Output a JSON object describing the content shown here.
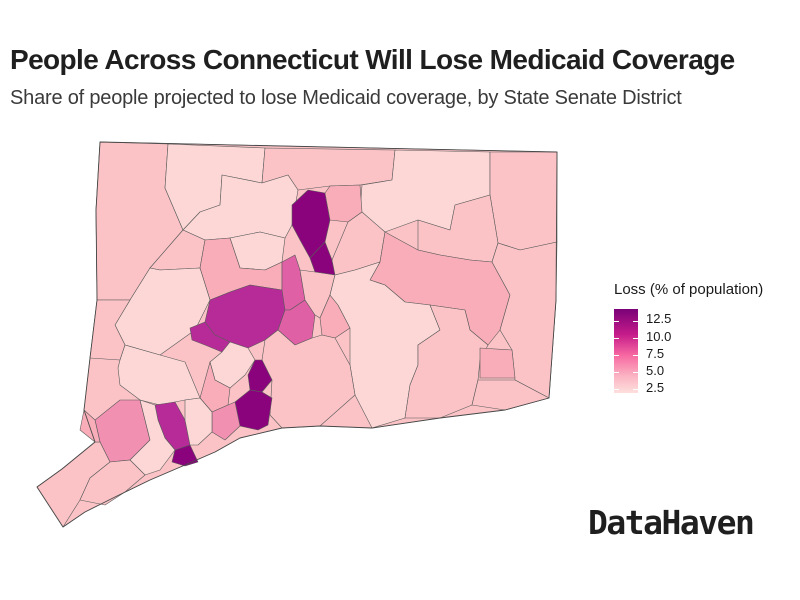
{
  "title": "People Across Connecticut Will Lose Medicaid Coverage",
  "subtitle": "Share of people projected to lose Medicaid coverage, by State Senate District",
  "legend": {
    "title": "Loss (% of population)",
    "ticks": [
      "12.5",
      "10.0",
      "7.5",
      "5.0",
      "2.5"
    ],
    "color_low": "#fde0dd",
    "color_high": "#7a0177"
  },
  "brand": "DataHaven",
  "colors": {
    "very_light": "#fcd7d6",
    "light": "#fbc3c6",
    "light_medium": "#f8adb8",
    "medium": "#f290b2",
    "medium_dark": "#e060a6",
    "dark": "#b72b98",
    "darkest": "#8a037c",
    "border": "#5a5a5a"
  }
}
